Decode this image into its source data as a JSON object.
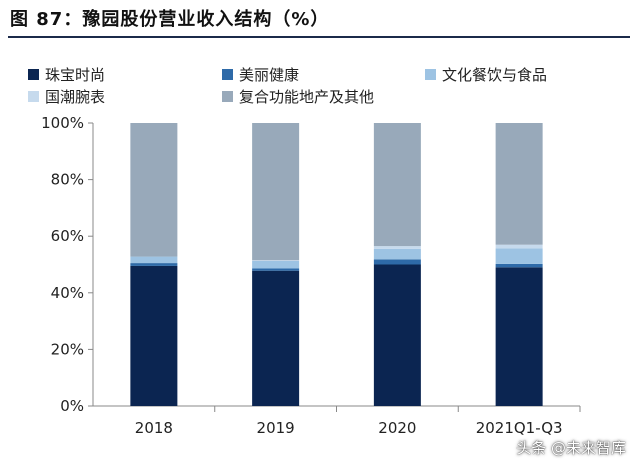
{
  "header": {
    "title": "图 87：豫园股份营业收入结构（%）"
  },
  "watermark": "头条 @未来智库",
  "chart_data": {
    "type": "bar",
    "stacked": true,
    "categories": [
      "2018",
      "2019",
      "2020",
      "2021Q1-Q3"
    ],
    "series": [
      {
        "name": "珠宝时尚",
        "color": "#0b2551",
        "values": [
          49.5,
          47.8,
          50.0,
          49.0
        ]
      },
      {
        "name": "美丽健康",
        "color": "#2e6aa8",
        "values": [
          1.0,
          0.8,
          1.8,
          1.2
        ]
      },
      {
        "name": "文化餐饮与食品",
        "color": "#9dc3e3",
        "values": [
          2.3,
          2.7,
          3.7,
          5.5
        ]
      },
      {
        "name": "国潮腕表",
        "color": "#c6daed",
        "values": [
          0.0,
          0.2,
          1.0,
          1.3
        ]
      },
      {
        "name": "复合功能地产及其他",
        "color": "#98a9ba",
        "values": [
          47.2,
          48.5,
          43.5,
          43.0
        ]
      }
    ],
    "y_ticks": [
      "0%",
      "20%",
      "40%",
      "60%",
      "80%",
      "100%"
    ],
    "ylim": [
      0,
      100
    ],
    "grid": false,
    "legend_position": "top"
  }
}
